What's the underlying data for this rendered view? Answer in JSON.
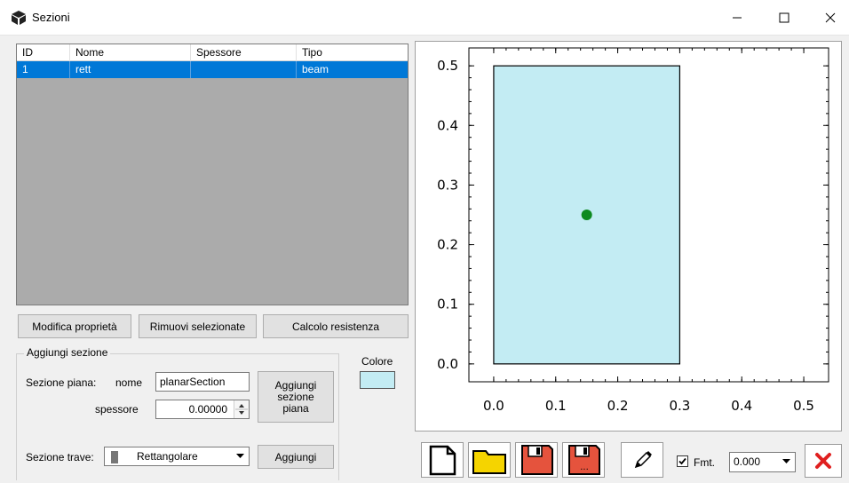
{
  "window": {
    "title": "Sezioni"
  },
  "table": {
    "columns": [
      "ID",
      "Nome",
      "Spessore",
      "Tipo"
    ],
    "rows": [
      {
        "id": "1",
        "nome": "rett",
        "spessore": "",
        "tipo": "beam"
      }
    ]
  },
  "actions": {
    "modify": "Modifica proprietà",
    "remove": "Rimuovi selezionate",
    "calc": "Calcolo resistenza"
  },
  "add_section": {
    "group_title": "Aggiungi sezione",
    "planar_label": "Sezione piana:",
    "name_label": "nome",
    "name_value": "planarSection",
    "thickness_label": "spessore",
    "thickness_value": "0.00000",
    "add_planar_btn": "Aggiungi sezione piana",
    "beam_label": "Sezione trave:",
    "beam_type": "Rettangolare",
    "add_btn": "Aggiungi"
  },
  "color": {
    "label": "Colore",
    "value": "#c3ecf3"
  },
  "toolbar": {
    "fmt_label": "Fmt.",
    "fmt_checked": true,
    "fmt_value": "0.000"
  },
  "chart_data": {
    "type": "scatter",
    "xlim": [
      -0.04,
      0.54
    ],
    "ylim": [
      -0.03,
      0.53
    ],
    "x_ticks": [
      "0.0",
      "0.1",
      "0.2",
      "0.3",
      "0.4",
      "0.5"
    ],
    "y_ticks": [
      "0.0",
      "0.1",
      "0.2",
      "0.3",
      "0.4",
      "0.5"
    ],
    "rectangle": {
      "x0": 0.0,
      "y0": 0.0,
      "x1": 0.3,
      "y1": 0.5,
      "fill": "#c3ecf3"
    },
    "centroid": {
      "x": 0.15,
      "y": 0.25,
      "color": "#0d8a1f"
    },
    "grid": false
  }
}
